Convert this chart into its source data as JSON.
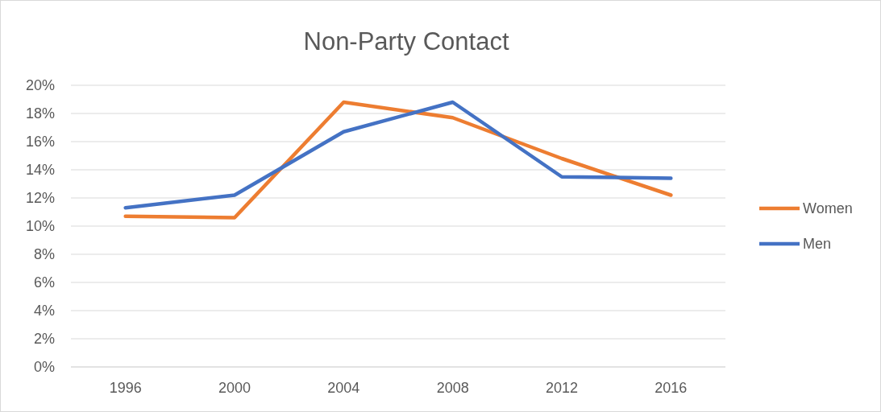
{
  "chart_data": {
    "type": "line",
    "title": "Non-Party Contact",
    "categories": [
      "1996",
      "2000",
      "2004",
      "2008",
      "2012",
      "2016"
    ],
    "series": [
      {
        "name": "Women",
        "color": "#ed7d31",
        "values": [
          10.7,
          10.6,
          18.8,
          17.7,
          14.8,
          12.2
        ]
      },
      {
        "name": "Men",
        "color": "#4472c4",
        "values": [
          11.3,
          12.2,
          16.7,
          18.8,
          13.5,
          13.4
        ]
      }
    ],
    "ylim": [
      0,
      20
    ],
    "yticks": [
      {
        "value": 0,
        "label": "0%"
      },
      {
        "value": 2,
        "label": "2%"
      },
      {
        "value": 4,
        "label": "4%"
      },
      {
        "value": 6,
        "label": "6%"
      },
      {
        "value": 8,
        "label": "8%"
      },
      {
        "value": 10,
        "label": "10%"
      },
      {
        "value": 12,
        "label": "12%"
      },
      {
        "value": 14,
        "label": "14%"
      },
      {
        "value": 16,
        "label": "16%"
      },
      {
        "value": 18,
        "label": "18%"
      },
      {
        "value": 20,
        "label": "20%"
      }
    ],
    "grid": "y",
    "legend": "right",
    "marker": "none",
    "line_style": "solid"
  }
}
